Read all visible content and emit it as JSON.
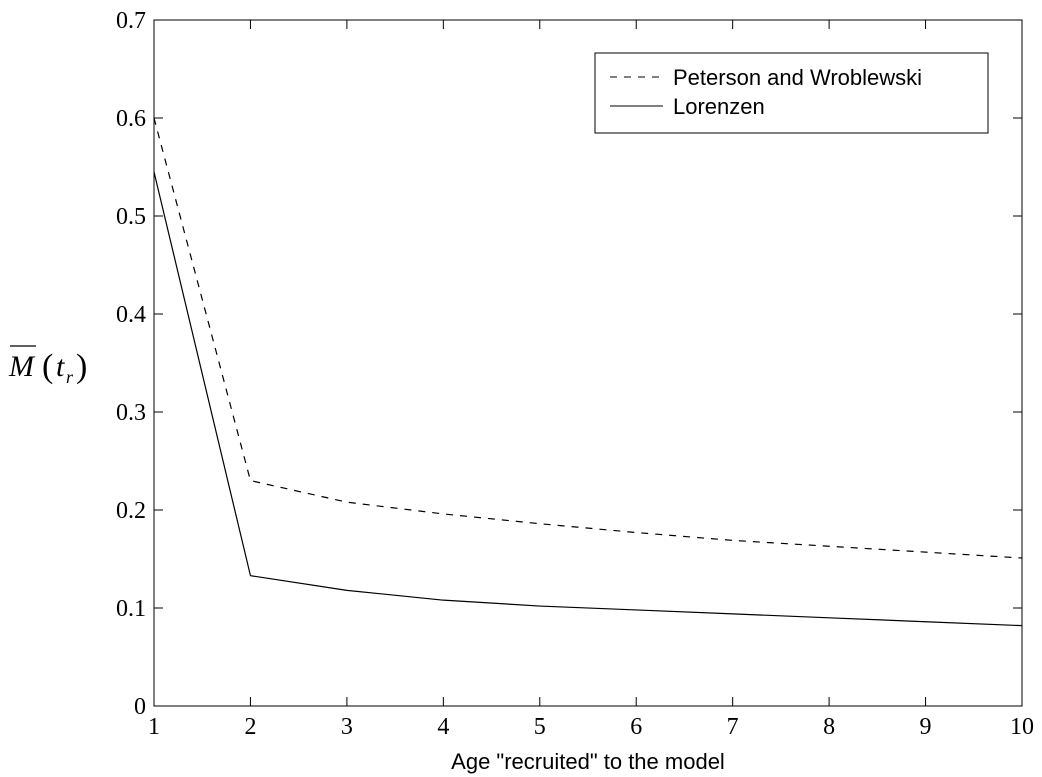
{
  "chart_data": {
    "type": "line",
    "title": "",
    "xlabel": "Age \"recruited\" to the model",
    "ylabel_symbol": "M",
    "ylabel_open": "(",
    "ylabel_sub_base": "t",
    "ylabel_sub": "r",
    "ylabel_close": ")",
    "xlim": [
      1,
      10
    ],
    "ylim": [
      0,
      0.7
    ],
    "xticks": [
      1,
      2,
      3,
      4,
      5,
      6,
      7,
      8,
      9,
      10
    ],
    "yticks": [
      0,
      0.1,
      0.2,
      0.3,
      0.4,
      0.5,
      0.6,
      0.7
    ],
    "ytick_labels": [
      "0",
      "0.1",
      "0.2",
      "0.3",
      "0.4",
      "0.5",
      "0.6",
      "0.7"
    ],
    "grid": false,
    "legend_position": "top-right",
    "x": [
      1,
      2,
      3,
      4,
      5,
      6,
      7,
      8,
      9,
      10
    ],
    "series": [
      {
        "name": "Peterson and Wroblewski",
        "style": "dashed",
        "color": "#000000",
        "values": [
          0.6,
          0.23,
          0.208,
          0.196,
          0.186,
          0.177,
          0.169,
          0.163,
          0.157,
          0.151
        ]
      },
      {
        "name": "Lorenzen",
        "style": "solid",
        "color": "#000000",
        "values": [
          0.545,
          0.133,
          0.118,
          0.108,
          0.102,
          0.098,
          0.094,
          0.09,
          0.086,
          0.082
        ]
      }
    ]
  }
}
